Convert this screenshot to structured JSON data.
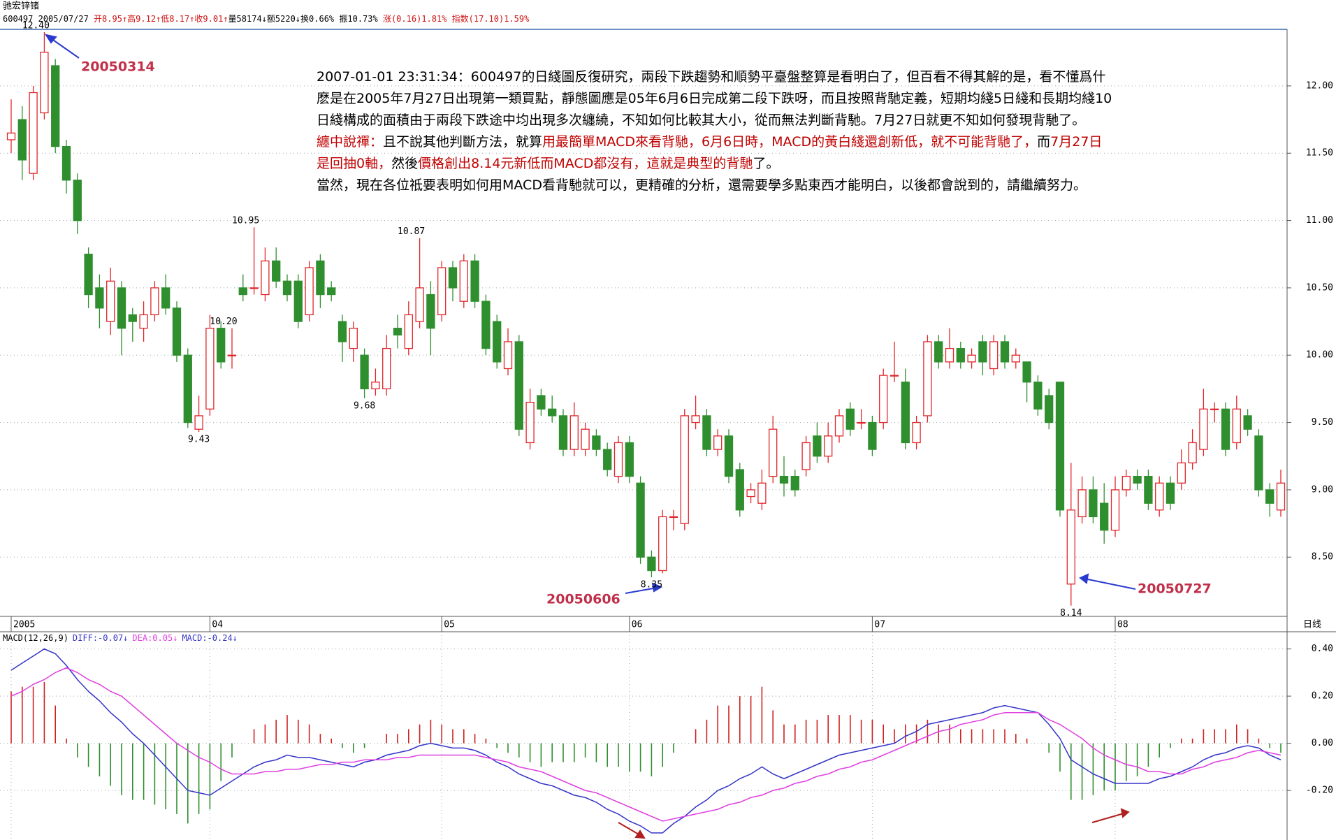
{
  "header": {
    "stock": "驰宏锌锗",
    "quote": [
      {
        "text": "600497 2005/07/27 ",
        "color": "#000000"
      },
      {
        "text": "开8.95↑高9.12↑低8.17↑收9.01↑",
        "color": "#d01010"
      },
      {
        "text": "量58174↓额5220↓换0.66% 振10.73% ",
        "color": "#000000"
      },
      {
        "text": "涨(0.16)1.81% 指数(17.10)1.59%",
        "color": "#d01010"
      }
    ]
  },
  "note": [
    [
      {
        "text": "2007-01-01 23:31:34：600497的日綫圖反復研究，兩段下跌趨勢和順勢平臺盤整算是看明白了，但百看不得其解的是，看不懂爲什",
        "color": "#000000"
      }
    ],
    [
      {
        "text": "麽是在2005年7月27日出現第一類買點，靜態圖應是05年6月6日完成第二段下跌呀，而且按照背馳定義，短期均綫5日綫和長期均綫10",
        "color": "#000000"
      }
    ],
    [
      {
        "text": "日綫構成的面積由于兩段下跌途中均出現多次纏繞，不知如何比較其大小，從而無法判斷背馳。7月27日就更不知如何發現背馳了。",
        "color": "#000000"
      }
    ],
    [
      {
        "text": "纏中說禪：",
        "color": "#c00000"
      },
      {
        "text": "且不說其他判斷方法，就算",
        "color": "#000000"
      },
      {
        "text": "用最簡單MACD來看背馳，6月6日時，MACD的黃白綫還創新低，就不可能背馳了，",
        "color": "#c00000"
      },
      {
        "text": "而",
        "color": "#000000"
      },
      {
        "text": "7月27日",
        "color": "#c00000"
      }
    ],
    [
      {
        "text": "是回抽0軸，",
        "color": "#c00000"
      },
      {
        "text": "然後",
        "color": "#000000"
      },
      {
        "text": "價格創出8.14元新低而MACD都沒有，這就是典型的背馳",
        "color": "#c00000"
      },
      {
        "text": "了。",
        "color": "#000000"
      }
    ],
    [
      {
        "text": "當然，現在各位祗要表明如何用MACD看背馳就可以，更精確的分析，還需要學多點東西才能明白，以後都會說到的，請繼續努力。",
        "color": "#000000"
      }
    ]
  ],
  "chart_data": [
    {
      "type": "candlestick",
      "period": "日线",
      "categories": [
        "2005",
        null,
        null,
        null,
        null,
        null,
        null,
        null,
        null,
        null,
        null,
        null,
        null,
        null,
        null,
        null,
        null,
        null,
        "04",
        null,
        null,
        null,
        null,
        null,
        null,
        null,
        null,
        null,
        null,
        null,
        null,
        null,
        null,
        null,
        null,
        null,
        null,
        null,
        null,
        "05",
        null,
        null,
        null,
        null,
        null,
        null,
        null,
        null,
        null,
        null,
        null,
        null,
        null,
        null,
        null,
        null,
        "06",
        null,
        null,
        null,
        null,
        null,
        null,
        null,
        null,
        null,
        null,
        null,
        null,
        null,
        null,
        null,
        null,
        null,
        null,
        null,
        null,
        null,
        "07",
        null,
        null,
        null,
        null,
        null,
        null,
        null,
        null,
        null,
        null,
        null,
        null,
        null,
        null,
        null,
        null,
        null,
        null,
        null,
        null,
        null,
        "08",
        null,
        null,
        null,
        null,
        null,
        null,
        null,
        null,
        null,
        null,
        null,
        null,
        null,
        null,
        null
      ],
      "open": [
        11.6,
        11.75,
        11.35,
        11.8,
        12.15,
        11.55,
        11.3,
        10.75,
        10.5,
        10.25,
        10.5,
        10.3,
        10.2,
        10.3,
        10.5,
        10.35,
        10.0,
        9.45,
        9.6,
        10.2,
        10.0,
        10.5,
        10.5,
        10.45,
        10.7,
        10.55,
        10.55,
        10.3,
        10.7,
        10.5,
        10.25,
        10.05,
        10.0,
        9.75,
        9.75,
        10.2,
        10.05,
        10.25,
        10.45,
        10.3,
        10.65,
        10.4,
        10.7,
        10.4,
        10.25,
        9.9,
        10.1,
        9.35,
        9.7,
        9.6,
        9.55,
        9.3,
        9.3,
        9.4,
        9.3,
        9.1,
        9.35,
        9.05,
        8.5,
        8.4,
        8.8,
        8.75,
        9.5,
        9.55,
        9.3,
        9.4,
        9.15,
        8.95,
        8.9,
        9.1,
        9.1,
        9.1,
        9.15,
        9.4,
        9.25,
        9.4,
        9.6,
        9.5,
        9.5,
        9.5,
        9.85,
        9.8,
        9.35,
        9.55,
        10.1,
        9.95,
        10.05,
        9.95,
        10.1,
        9.9,
        10.1,
        9.95,
        9.95,
        9.8,
        9.7,
        9.8,
        8.3,
        8.8,
        9.0,
        8.9,
        8.7,
        9.0,
        9.1,
        9.1,
        8.85,
        9.05,
        9.05,
        9.2,
        9.3,
        9.6,
        9.6,
        9.35,
        9.55,
        9.4,
        9.0,
        8.85
      ],
      "high": [
        11.9,
        11.85,
        12.0,
        12.4,
        12.2,
        11.6,
        11.35,
        10.8,
        10.6,
        10.65,
        10.55,
        10.35,
        10.4,
        10.55,
        10.6,
        10.4,
        10.05,
        9.7,
        10.3,
        10.25,
        10.2,
        10.6,
        10.95,
        10.8,
        10.8,
        10.6,
        10.6,
        10.7,
        10.75,
        10.55,
        10.3,
        10.25,
        10.05,
        9.9,
        10.15,
        10.3,
        10.4,
        10.87,
        10.55,
        10.7,
        10.7,
        10.75,
        10.75,
        10.45,
        10.3,
        10.2,
        10.15,
        9.75,
        9.75,
        9.7,
        9.6,
        9.65,
        9.5,
        9.45,
        9.35,
        9.4,
        9.4,
        9.1,
        8.55,
        8.85,
        8.85,
        9.6,
        9.7,
        9.6,
        9.45,
        9.45,
        9.2,
        9.05,
        9.15,
        9.55,
        9.25,
        9.15,
        9.4,
        9.5,
        9.5,
        9.6,
        9.65,
        9.6,
        9.55,
        9.9,
        10.1,
        9.9,
        9.55,
        10.15,
        10.15,
        10.2,
        10.1,
        10.05,
        10.15,
        10.15,
        10.15,
        10.05,
        9.95,
        9.85,
        9.75,
        9.8,
        9.2,
        9.1,
        9.1,
        9.05,
        9.1,
        9.15,
        9.15,
        9.15,
        9.1,
        9.1,
        9.3,
        9.45,
        9.75,
        9.65,
        9.65,
        9.7,
        9.6,
        9.45,
        9.05,
        9.15
      ],
      "low": [
        11.5,
        11.3,
        11.3,
        11.75,
        11.5,
        11.2,
        10.9,
        10.35,
        10.2,
        10.15,
        10.0,
        10.1,
        10.1,
        10.25,
        10.3,
        9.95,
        9.46,
        9.43,
        9.55,
        9.9,
        9.9,
        10.4,
        10.45,
        10.4,
        10.5,
        10.4,
        10.2,
        10.25,
        10.35,
        10.4,
        9.95,
        9.95,
        9.68,
        9.7,
        9.7,
        10.05,
        10.0,
        10.2,
        10.0,
        10.25,
        10.4,
        10.35,
        10.35,
        10.0,
        9.9,
        9.85,
        9.4,
        9.3,
        9.55,
        9.5,
        9.25,
        9.25,
        9.25,
        9.25,
        9.1,
        9.05,
        9.05,
        8.45,
        8.35,
        8.38,
        8.7,
        8.7,
        9.45,
        9.25,
        9.25,
        9.05,
        8.8,
        8.9,
        8.85,
        9.05,
        8.95,
        8.95,
        9.1,
        9.2,
        9.2,
        9.35,
        9.4,
        9.45,
        9.25,
        9.45,
        9.8,
        9.3,
        9.3,
        9.5,
        9.9,
        9.9,
        9.9,
        9.9,
        9.85,
        9.85,
        9.9,
        9.9,
        9.65,
        9.55,
        9.45,
        8.8,
        8.14,
        8.75,
        8.75,
        8.6,
        8.65,
        8.95,
        9.0,
        8.85,
        8.8,
        8.85,
        9.0,
        9.15,
        9.25,
        9.5,
        9.25,
        9.3,
        9.4,
        8.95,
        8.8,
        8.8
      ],
      "close": [
        11.65,
        11.45,
        11.95,
        12.25,
        11.55,
        11.3,
        11.0,
        10.45,
        10.35,
        10.55,
        10.2,
        10.25,
        10.3,
        10.5,
        10.35,
        10.0,
        9.5,
        9.55,
        10.2,
        9.95,
        10.0,
        10.45,
        10.5,
        10.7,
        10.55,
        10.45,
        10.25,
        10.65,
        10.45,
        10.45,
        10.1,
        10.2,
        9.75,
        9.8,
        10.05,
        10.15,
        10.3,
        10.5,
        10.2,
        10.65,
        10.5,
        10.7,
        10.4,
        10.05,
        9.95,
        10.1,
        9.45,
        9.65,
        9.6,
        9.55,
        9.3,
        9.55,
        9.45,
        9.3,
        9.15,
        9.35,
        9.1,
        8.5,
        8.4,
        8.8,
        8.8,
        9.55,
        9.55,
        9.3,
        9.4,
        9.1,
        8.85,
        9.0,
        9.05,
        9.45,
        9.05,
        9.0,
        9.35,
        9.25,
        9.4,
        9.55,
        9.45,
        9.5,
        9.3,
        9.85,
        9.85,
        9.35,
        9.5,
        10.1,
        9.95,
        10.05,
        9.95,
        10.0,
        9.95,
        10.1,
        9.95,
        10.0,
        9.8,
        9.6,
        9.5,
        8.85,
        8.85,
        9.0,
        8.8,
        8.7,
        9.0,
        9.1,
        9.05,
        8.9,
        9.05,
        8.9,
        9.2,
        9.35,
        9.6,
        9.6,
        9.3,
        9.6,
        9.45,
        9.0,
        8.9,
        9.05
      ],
      "up_color": "#e0262b",
      "down_color": "#2f8f2f",
      "ylim": [
        8.06,
        12.42
      ],
      "yticks": [
        {
          "value": 8.5,
          "label": "8.50"
        },
        {
          "value": 9,
          "label": "9.00"
        },
        {
          "value": 9.5,
          "label": "9.50"
        },
        {
          "value": 10,
          "label": "10.00"
        },
        {
          "value": 10.5,
          "label": "10.50"
        },
        {
          "value": 11,
          "label": "11.00"
        },
        {
          "value": 11.5,
          "label": "11.50"
        },
        {
          "value": 12,
          "label": "12.00"
        }
      ],
      "grid": true,
      "annotations": [
        {
          "value": 12.4,
          "label": "12.40"
        },
        {
          "value": 9.43,
          "label": "9.43"
        },
        {
          "value": 10.95,
          "label": "10.95"
        },
        {
          "value": 9.68,
          "label": "9.68"
        },
        {
          "value": 10.87,
          "label": "10.87"
        },
        {
          "value": 8.35,
          "label": "8.35"
        },
        {
          "value": 10.2,
          "label": "10.20"
        },
        {
          "value": 8.14,
          "label": "8.14"
        }
      ],
      "date_labels": [
        "20050314",
        "20050606",
        "20050727"
      ]
    },
    {
      "type": "macd",
      "title": "MACD(12,26,9)",
      "legend": [
        "DIFF:-0.07↓",
        "DEA:0.05↓",
        "MACD:-0.24↓"
      ],
      "series": [
        {
          "type": "line",
          "color": "#3434c8",
          "values": [
            0.31,
            0.34,
            0.37,
            0.4,
            0.38,
            0.33,
            0.27,
            0.22,
            0.18,
            0.13,
            0.09,
            0.04,
            0.0,
            -0.05,
            -0.1,
            -0.15,
            -0.2,
            -0.21,
            -0.22,
            -0.19,
            -0.16,
            -0.13,
            -0.1,
            -0.08,
            -0.07,
            -0.05,
            -0.06,
            -0.06,
            -0.07,
            -0.08,
            -0.09,
            -0.1,
            -0.08,
            -0.07,
            -0.05,
            -0.04,
            -0.03,
            -0.01,
            0.0,
            -0.01,
            -0.02,
            -0.02,
            -0.03,
            -0.05,
            -0.08,
            -0.1,
            -0.13,
            -0.15,
            -0.17,
            -0.18,
            -0.2,
            -0.22,
            -0.23,
            -0.25,
            -0.28,
            -0.3,
            -0.33,
            -0.35,
            -0.38,
            -0.38,
            -0.34,
            -0.31,
            -0.27,
            -0.24,
            -0.2,
            -0.18,
            -0.15,
            -0.13,
            -0.1,
            -0.13,
            -0.15,
            -0.13,
            -0.11,
            -0.09,
            -0.07,
            -0.05,
            -0.04,
            -0.03,
            -0.02,
            -0.01,
            0.0,
            0.03,
            0.05,
            0.08,
            0.09,
            0.1,
            0.11,
            0.12,
            0.13,
            0.15,
            0.16,
            0.15,
            0.14,
            0.13,
            0.08,
            0.02,
            -0.07,
            -0.1,
            -0.13,
            -0.15,
            -0.17,
            -0.17,
            -0.17,
            -0.17,
            -0.15,
            -0.14,
            -0.12,
            -0.1,
            -0.07,
            -0.05,
            -0.04,
            -0.02,
            -0.01,
            -0.02,
            -0.05,
            -0.07
          ]
        },
        {
          "type": "line",
          "color": "#e040e0",
          "values": [
            0.2,
            0.22,
            0.25,
            0.27,
            0.3,
            0.32,
            0.3,
            0.27,
            0.25,
            0.22,
            0.2,
            0.16,
            0.12,
            0.08,
            0.04,
            0.0,
            -0.03,
            -0.06,
            -0.08,
            -0.11,
            -0.13,
            -0.13,
            -0.13,
            -0.12,
            -0.12,
            -0.11,
            -0.11,
            -0.1,
            -0.09,
            -0.09,
            -0.08,
            -0.08,
            -0.07,
            -0.07,
            -0.07,
            -0.06,
            -0.06,
            -0.05,
            -0.05,
            -0.05,
            -0.05,
            -0.05,
            -0.05,
            -0.06,
            -0.07,
            -0.08,
            -0.1,
            -0.11,
            -0.12,
            -0.14,
            -0.16,
            -0.18,
            -0.2,
            -0.21,
            -0.23,
            -0.25,
            -0.27,
            -0.29,
            -0.31,
            -0.33,
            -0.32,
            -0.31,
            -0.3,
            -0.29,
            -0.28,
            -0.26,
            -0.25,
            -0.23,
            -0.22,
            -0.2,
            -0.19,
            -0.17,
            -0.16,
            -0.14,
            -0.13,
            -0.11,
            -0.1,
            -0.08,
            -0.07,
            -0.05,
            -0.03,
            -0.01,
            0.01,
            0.03,
            0.05,
            0.06,
            0.08,
            0.09,
            0.1,
            0.12,
            0.13,
            0.13,
            0.13,
            0.13,
            0.1,
            0.08,
            0.05,
            0.02,
            -0.02,
            -0.05,
            -0.07,
            -0.09,
            -0.1,
            -0.12,
            -0.12,
            -0.13,
            -0.13,
            -0.11,
            -0.1,
            -0.08,
            -0.07,
            -0.06,
            -0.04,
            -0.03,
            -0.04,
            -0.05
          ]
        },
        {
          "type": "bar",
          "color": "#3434c8",
          "up_color": "#d02020",
          "down_color": "#2f8f2f",
          "values": [
            0.22,
            0.24,
            0.24,
            0.26,
            0.16,
            0.02,
            -0.06,
            -0.1,
            -0.14,
            -0.18,
            -0.22,
            -0.24,
            -0.24,
            -0.26,
            -0.28,
            -0.3,
            -0.34,
            -0.3,
            -0.28,
            -0.16,
            -0.06,
            0.0,
            0.06,
            0.08,
            0.1,
            0.12,
            0.1,
            0.08,
            0.04,
            0.02,
            -0.02,
            -0.04,
            -0.02,
            0.0,
            0.04,
            0.04,
            0.06,
            0.08,
            0.1,
            0.08,
            0.06,
            0.06,
            0.04,
            0.02,
            -0.02,
            -0.04,
            -0.06,
            -0.08,
            -0.1,
            -0.08,
            -0.08,
            -0.08,
            -0.06,
            -0.08,
            -0.1,
            -0.1,
            -0.12,
            -0.12,
            -0.14,
            -0.1,
            -0.04,
            0.0,
            0.06,
            0.1,
            0.16,
            0.16,
            0.2,
            0.2,
            0.24,
            0.14,
            0.08,
            0.08,
            0.1,
            0.1,
            0.12,
            0.12,
            0.12,
            0.1,
            0.1,
            0.08,
            0.06,
            0.08,
            0.08,
            0.1,
            0.08,
            0.08,
            0.06,
            0.06,
            0.06,
            0.06,
            0.06,
            0.04,
            0.02,
            0.0,
            -0.04,
            -0.12,
            -0.24,
            -0.24,
            -0.22,
            -0.2,
            -0.2,
            -0.16,
            -0.14,
            -0.1,
            -0.06,
            -0.02,
            0.02,
            0.02,
            0.06,
            0.06,
            0.06,
            0.08,
            0.06,
            0.02,
            -0.02,
            -0.04
          ]
        }
      ],
      "ylim": [
        -0.41,
        0.47
      ],
      "yticks": [
        {
          "value": 0.4,
          "label": "0.40"
        },
        {
          "value": 0.2,
          "label": "0.20"
        },
        {
          "value": 0,
          "label": "0.00"
        },
        {
          "value": -0.2,
          "label": "-0.20"
        }
      ],
      "grid": true
    }
  ]
}
